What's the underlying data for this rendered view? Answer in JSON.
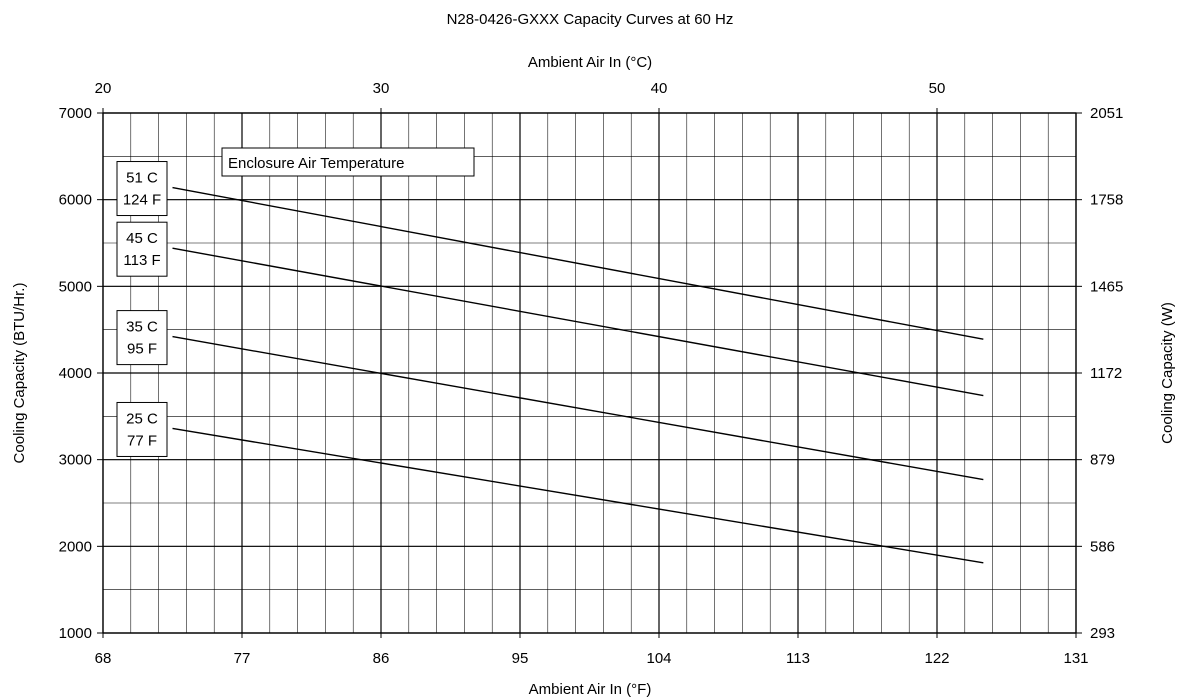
{
  "chart_data": {
    "type": "line",
    "title": "N28-0426-GXXX Capacity Curves at 60 Hz",
    "xlabel": "Ambient Air In (°F)",
    "x2label": "Ambient Air In (°C)",
    "ylabel": "Cooling Capacity (BTU/Hr.)",
    "y2label": "Cooling Capacity (W)",
    "xlim": [
      68,
      131
    ],
    "ylim": [
      1000,
      7000
    ],
    "x_ticks": [
      68,
      77,
      86,
      95,
      104,
      113,
      122,
      131
    ],
    "x2_ticks": [
      20,
      30,
      40,
      50
    ],
    "y_ticks": [
      1000,
      2000,
      3000,
      4000,
      5000,
      6000,
      7000
    ],
    "y2_ticks": [
      "293",
      "586",
      "879",
      "1172",
      "1465",
      "1758",
      "2051"
    ],
    "grid": true,
    "legend_title": "Enclosure Air Temperature",
    "series": [
      {
        "label_c": "51 C",
        "label_f": "124 F",
        "x": [
          72.5,
          125
        ],
        "y": [
          6140,
          4390
        ]
      },
      {
        "label_c": "45 C",
        "label_f": "113 F",
        "x": [
          72.5,
          125
        ],
        "y": [
          5440,
          3740
        ]
      },
      {
        "label_c": "35 C",
        "label_f": "95 F",
        "x": [
          72.5,
          125
        ],
        "y": [
          4420,
          2770
        ]
      },
      {
        "label_c": "25 C",
        "label_f": "77 F",
        "x": [
          72.5,
          125
        ],
        "y": [
          3360,
          1810
        ]
      }
    ]
  }
}
